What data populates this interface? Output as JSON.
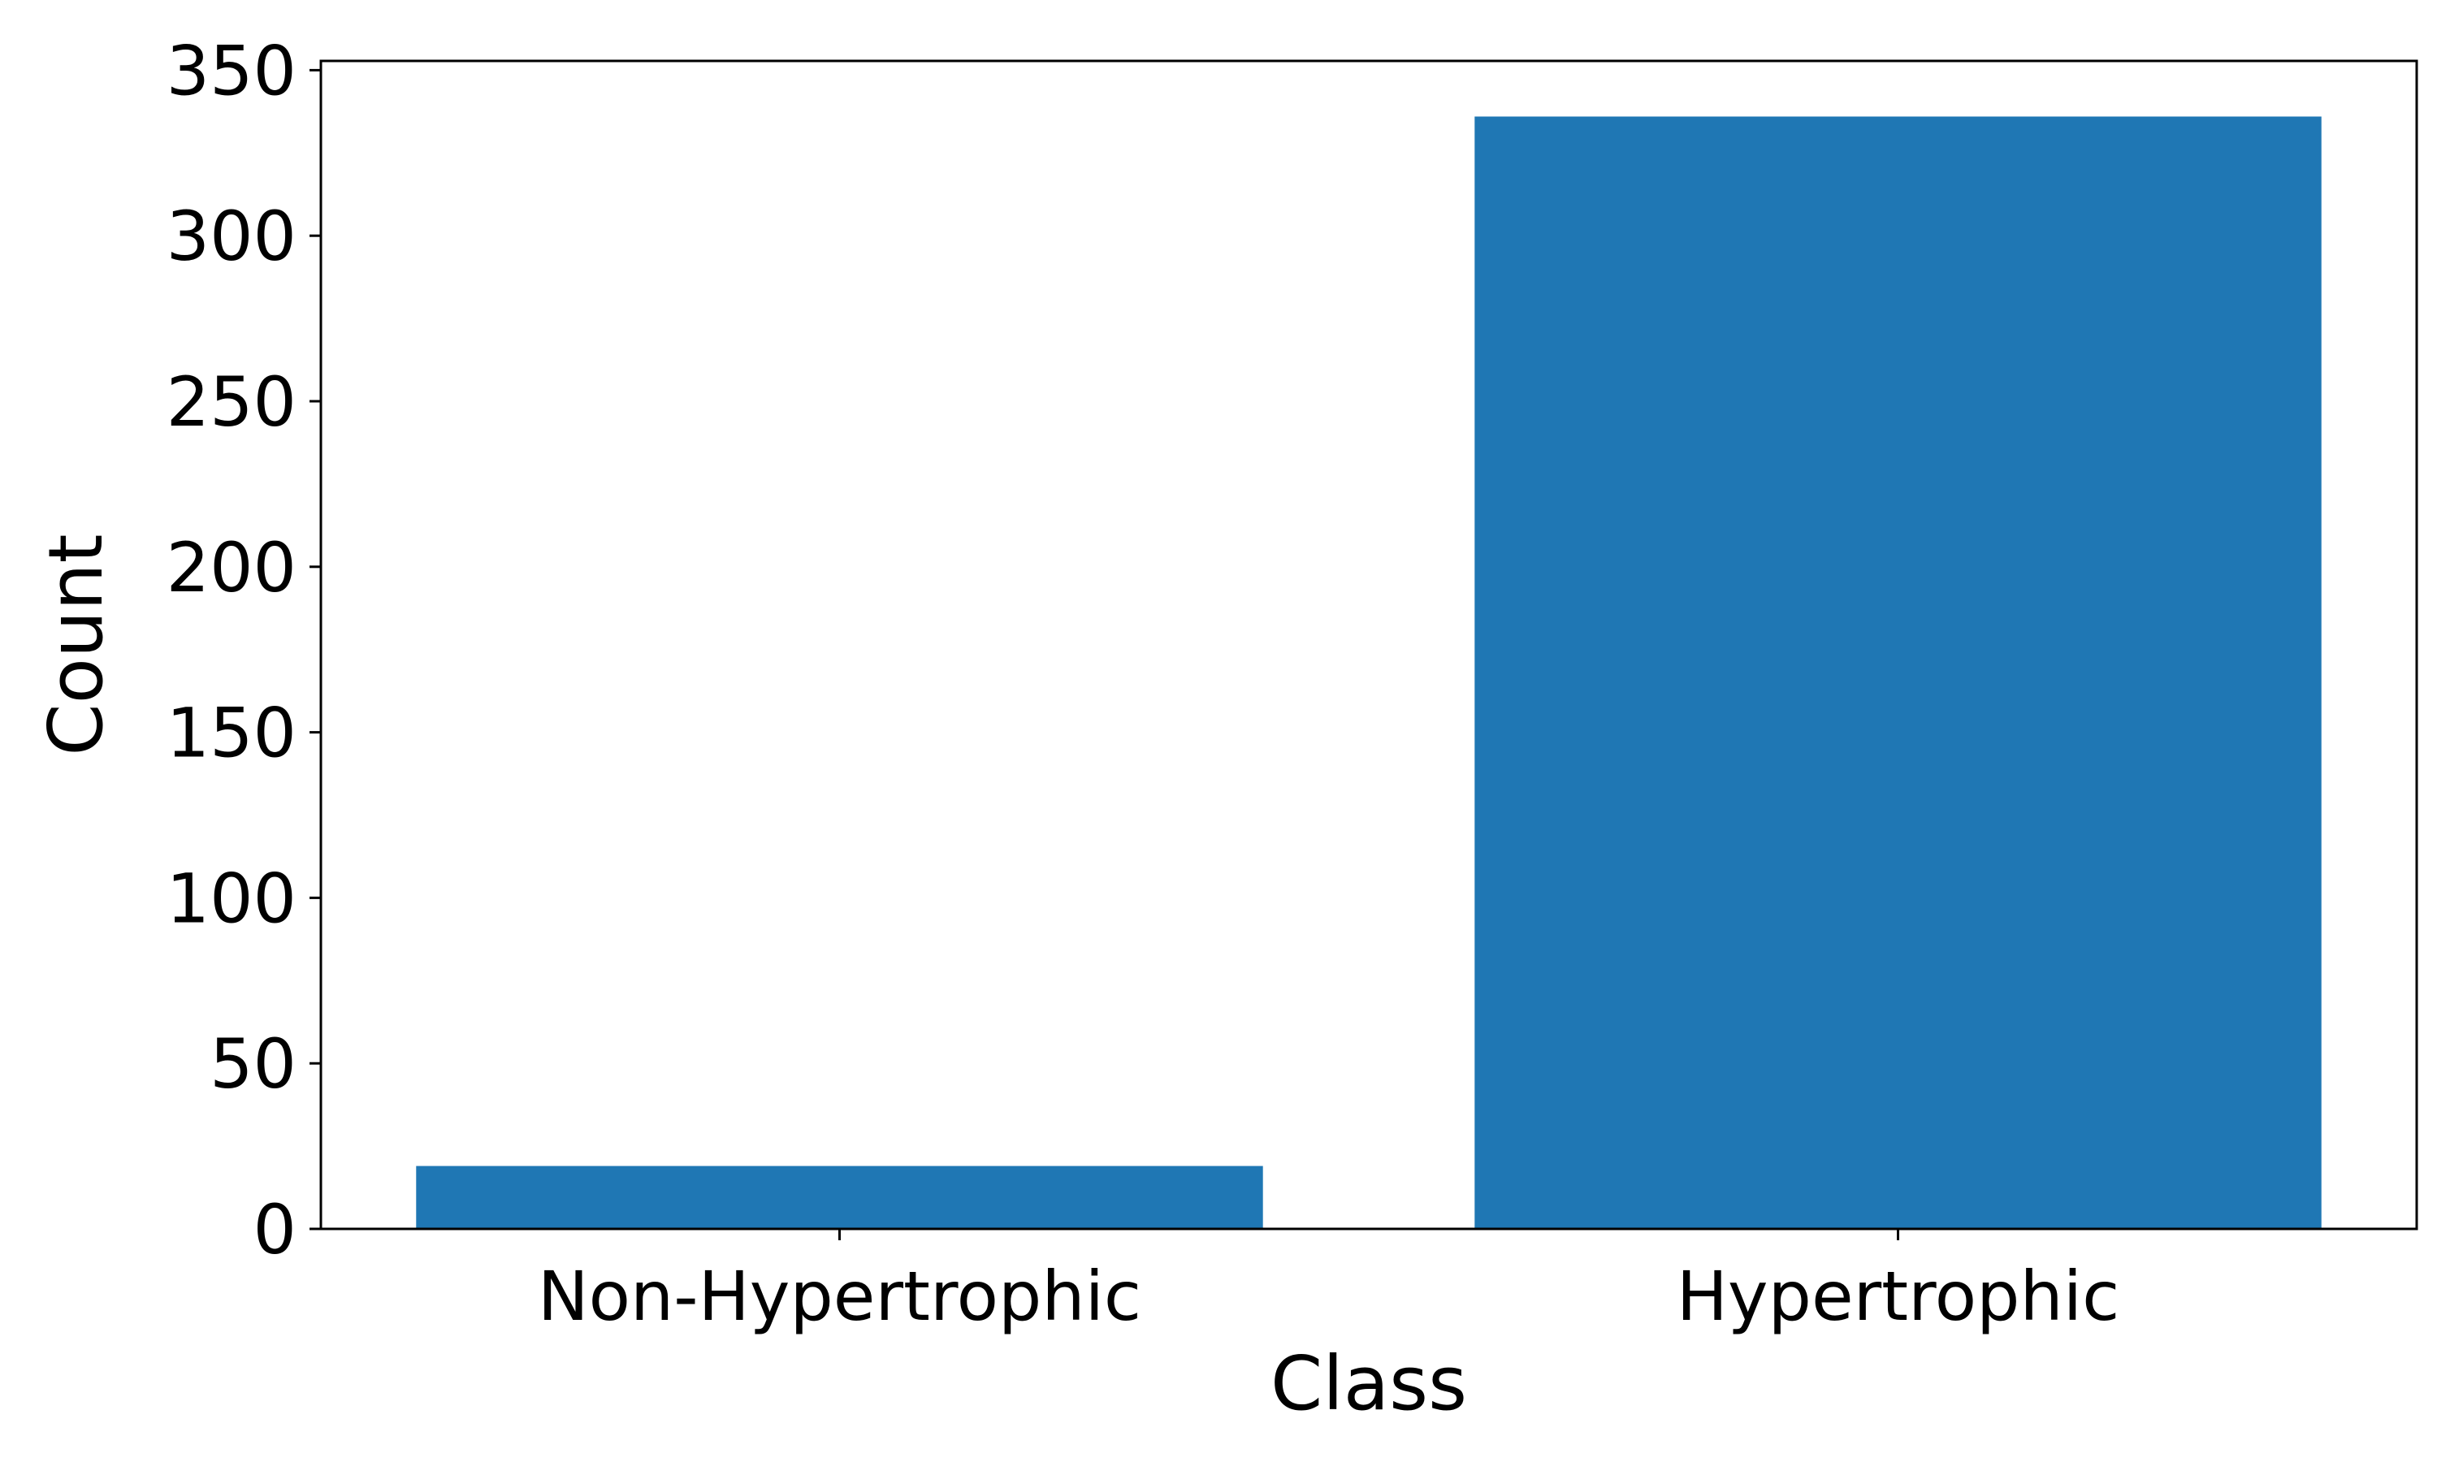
{
  "chart_data": {
    "type": "bar",
    "title": "",
    "xlabel": "Class",
    "ylabel": "Count",
    "categories": [
      "Non-Hypertrophic",
      "Hypertrophic"
    ],
    "values": [
      19,
      336
    ],
    "ylim": [
      0,
      352.8
    ],
    "yticks": [
      0,
      50,
      100,
      150,
      200,
      250,
      300,
      350
    ],
    "ytick_labels": [
      "0",
      "50",
      "100",
      "150",
      "200",
      "250",
      "300",
      "350"
    ],
    "grid": false,
    "legend": "none",
    "colors": {
      "bar": "#1f77b4",
      "axis": "#000000",
      "background": "#ffffff"
    }
  }
}
